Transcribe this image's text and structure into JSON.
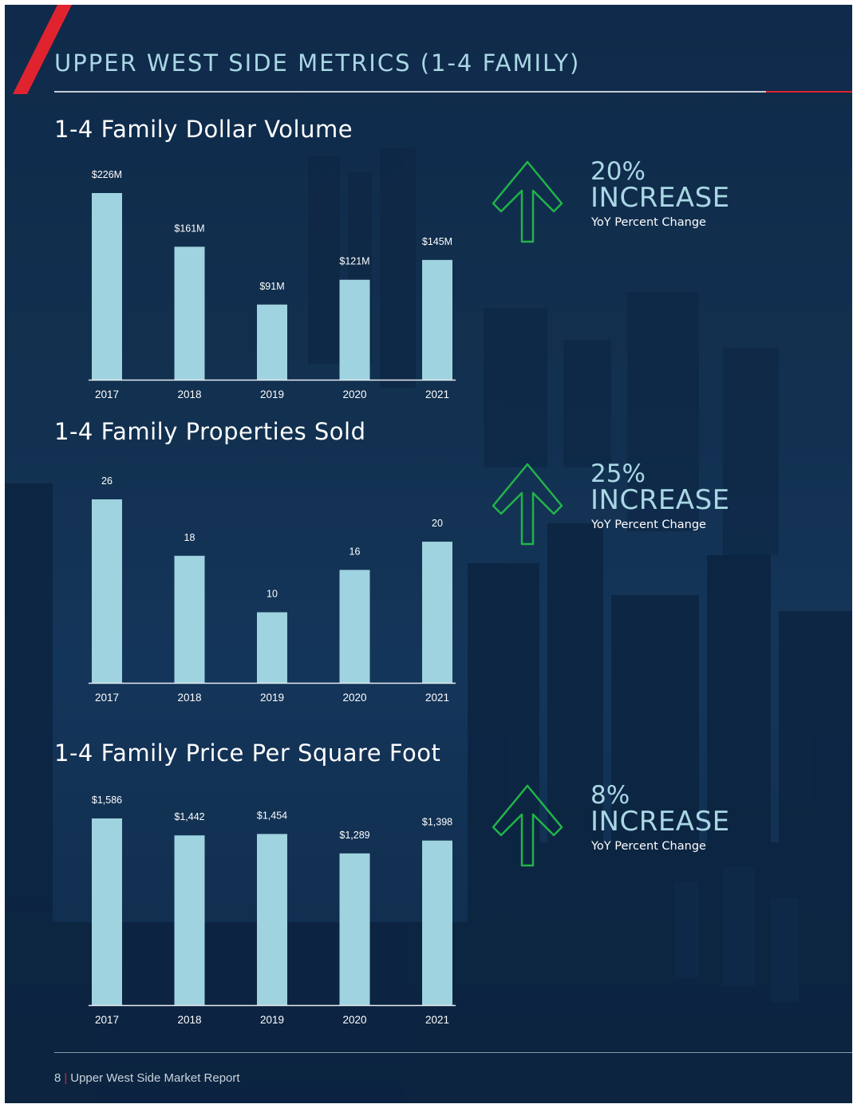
{
  "page": {
    "title": "UPPER WEST SIDE METRICS (1-4 FAMILY)",
    "colors": {
      "background": "#12304f",
      "accent": "#e0232f",
      "bar": "#9fd3df",
      "title": "#a9d7e4",
      "arrow": "#22b34a"
    }
  },
  "sections": [
    {
      "title": "1-4 Family Dollar Volume",
      "callout": {
        "icon": "up-arrow-icon",
        "percent": "20%",
        "word": "INCREASE",
        "subtitle": "YoY Percent Change"
      },
      "chart_data": {
        "type": "bar",
        "title": "1-4 Family Dollar Volume",
        "categories": [
          "2017",
          "2018",
          "2019",
          "2020",
          "2021"
        ],
        "values": [
          226,
          161,
          91,
          121,
          145
        ],
        "value_labels": [
          "$226M",
          "$161M",
          "$91M",
          "$121M",
          "$145M"
        ],
        "units": "$M",
        "ylim": [
          0,
          226
        ],
        "grid": false,
        "legend": "none"
      }
    },
    {
      "title": "1-4 Family Properties Sold",
      "callout": {
        "icon": "up-arrow-icon",
        "percent": "25%",
        "word": "INCREASE",
        "subtitle": "YoY Percent Change"
      },
      "chart_data": {
        "type": "bar",
        "title": "1-4 Family Properties Sold",
        "categories": [
          "2017",
          "2018",
          "2019",
          "2020",
          "2021"
        ],
        "values": [
          26,
          18,
          10,
          16,
          20
        ],
        "value_labels": [
          "26",
          "18",
          "10",
          "16",
          "20"
        ],
        "ylim": [
          0,
          26
        ],
        "grid": false,
        "legend": "none"
      }
    },
    {
      "title": "1-4 Family Price Per Square Foot",
      "callout": {
        "icon": "up-arrow-icon",
        "percent": "8%",
        "word": "INCREASE",
        "subtitle": "YoY Percent Change"
      },
      "chart_data": {
        "type": "bar",
        "title": "1-4 Family Price Per Square Foot",
        "categories": [
          "2017",
          "2018",
          "2019",
          "2020",
          "2021"
        ],
        "values": [
          1586,
          1442,
          1454,
          1289,
          1398
        ],
        "value_labels": [
          "$1,586",
          "$1,442",
          "$1,454",
          "$1,289",
          "$1,398"
        ],
        "units": "$",
        "ylim": [
          0,
          1586
        ],
        "grid": false,
        "legend": "none"
      }
    }
  ],
  "footer": {
    "page_number": "8",
    "label": "Upper West Side Market Report"
  }
}
